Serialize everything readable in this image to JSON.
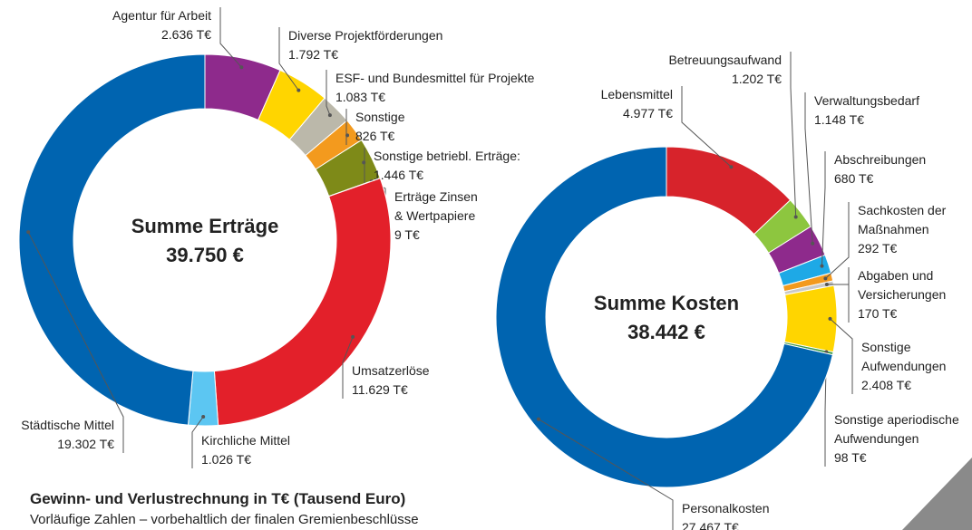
{
  "chart_data": [
    {
      "type": "donut",
      "title": "Summe Erträge",
      "total_label": "39.750 €",
      "categories": [
        "Agentur für Arbeit",
        "Diverse Projektförderungen",
        "ESF- und Bundesmittel für Projekte",
        "Sonstige",
        "Sonstige betriebl. Erträge:",
        "Erträge Zinsen & Wertpapiere",
        "Umsatzerlöse",
        "Kirchliche Mittel",
        "Städtische Mittel"
      ],
      "values": [
        2636,
        1792,
        1083,
        826,
        1446,
        9,
        11629,
        1026,
        19302
      ],
      "value_labels": [
        "2.636 T€",
        "1.792 T€",
        "1.083 T€",
        "826 T€",
        "1.446 T€",
        "9 T€",
        "11.629 T€",
        "1.026 T€",
        "19.302 T€"
      ],
      "colors": [
        "#8e2a8c",
        "#ffd500",
        "#bbb8aa",
        "#f39a1e",
        "#7e8a18",
        "#4f9e3a",
        "#e3202a",
        "#5cc6f2",
        "#0064b0"
      ]
    },
    {
      "type": "donut",
      "title": "Summe Kosten",
      "total_label": "38.442 €",
      "categories": [
        "Lebensmittel",
        "Betreuungsaufwand",
        "Verwaltungsbedarf",
        "Abschreibungen",
        "Sachkosten der Maßnahmen",
        "Abgaben und Versicherungen",
        "Sonstige Aufwendungen",
        "Sonstige aperiodische Aufwendungen",
        "Personalkosten"
      ],
      "values": [
        4977,
        1202,
        1148,
        680,
        292,
        170,
        2408,
        98,
        27467
      ],
      "value_labels": [
        "4.977 T€",
        "1.202 T€",
        "1.148 T€",
        "680 T€",
        "292 T€",
        "170 T€",
        "2.408 T€",
        "98 T€",
        "27.467 T€"
      ],
      "colors": [
        "#d7232b",
        "#8dc63f",
        "#8e2a8c",
        "#1ea9e6",
        "#f39a1e",
        "#c9c9c9",
        "#ffd500",
        "#3c9a48",
        "#0064b0"
      ]
    }
  ],
  "caption": "Gewinn- und Verlustrechnung in T€ (Tausend Euro)",
  "note": "Vorläufige Zahlen – vorbehaltlich der finalen Gremienbeschlüsse"
}
